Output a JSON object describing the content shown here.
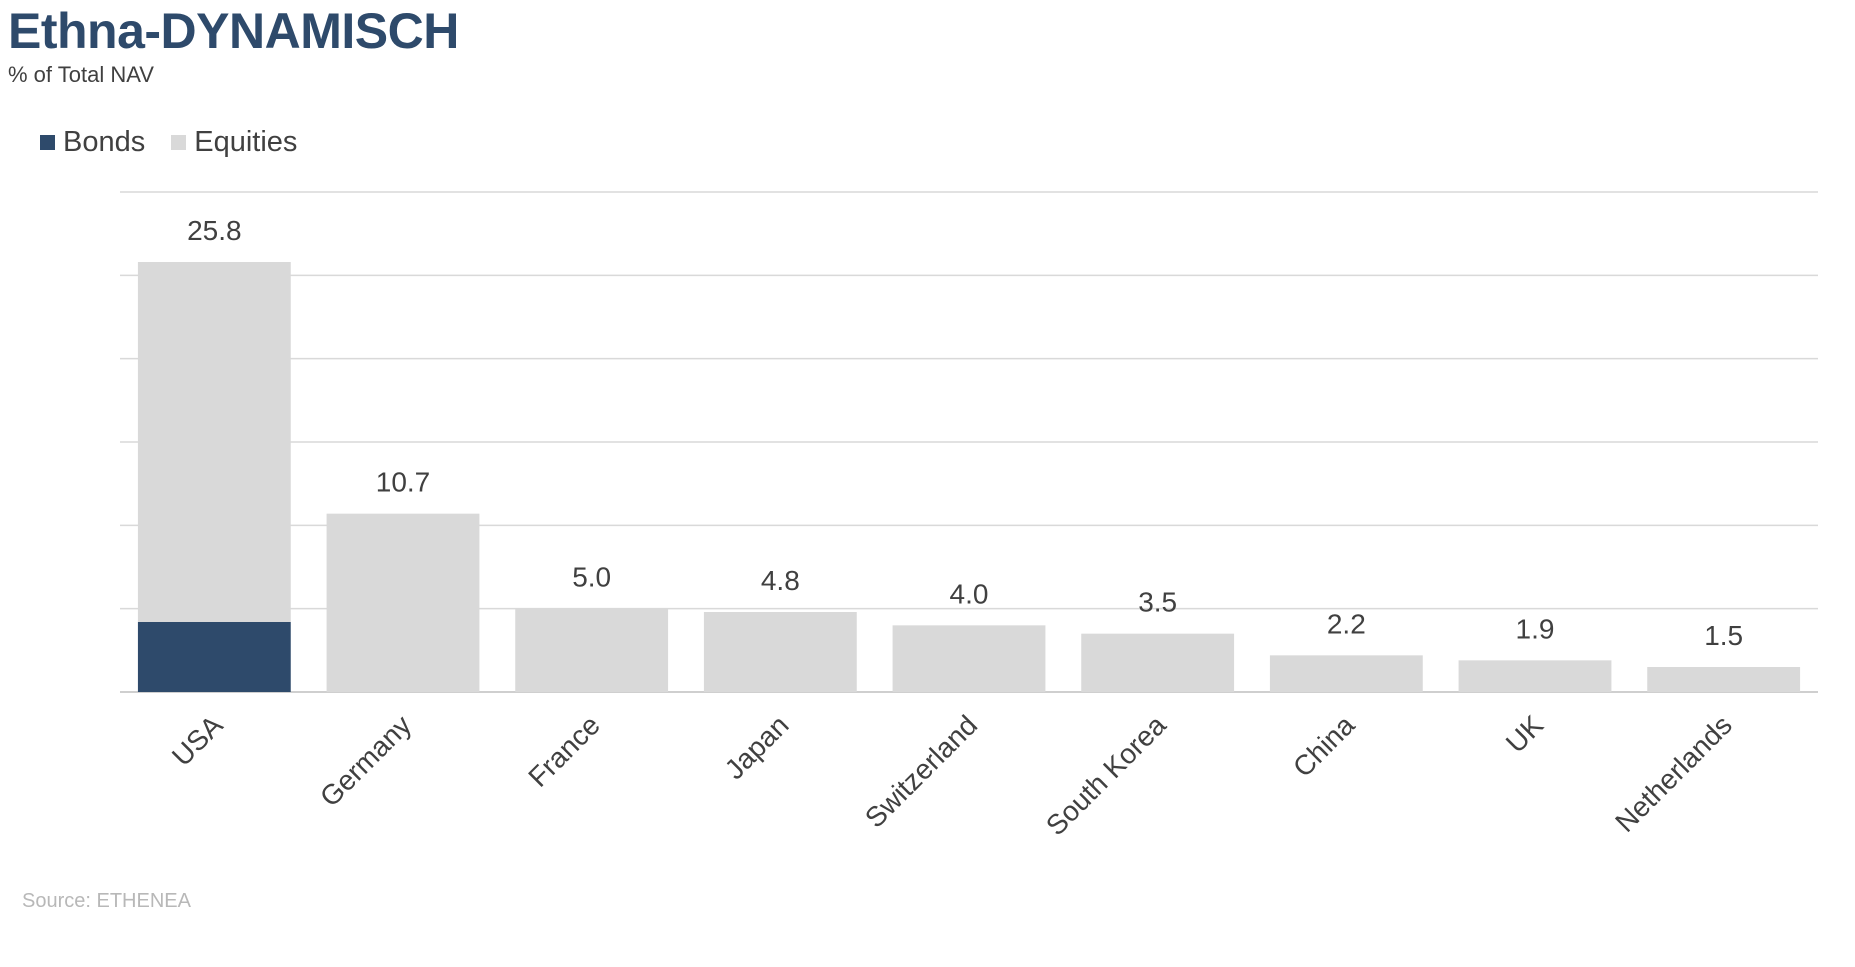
{
  "header": {
    "title": "Ethna-DYNAMISCH",
    "subtitle": "% of Total NAV"
  },
  "legend": [
    {
      "label": "Bonds",
      "color": "#2e4a6b"
    },
    {
      "label": "Equities",
      "color": "#d9d9d9"
    }
  ],
  "footer": {
    "source": "Source: ETHENEA"
  },
  "chart_data": {
    "type": "bar",
    "stacked": true,
    "title": "Ethna-DYNAMISCH",
    "subtitle": "% of Total NAV",
    "categories": [
      "USA",
      "Germany",
      "France",
      "Japan",
      "Switzerland",
      "South Korea",
      "China",
      "UK",
      "Netherlands"
    ],
    "series": [
      {
        "name": "Bonds",
        "color": "#2e4a6b",
        "values": [
          4.2,
          0,
          0,
          0,
          0,
          0,
          0,
          0,
          0
        ]
      },
      {
        "name": "Equities",
        "color": "#d9d9d9",
        "values": [
          21.6,
          10.7,
          5.0,
          4.8,
          4.0,
          3.5,
          2.2,
          1.9,
          1.5
        ]
      }
    ],
    "totals": [
      "25.8",
      "10.7",
      "5.0",
      "4.8",
      "4.0",
      "3.5",
      "2.2",
      "1.9",
      "1.5"
    ],
    "ylim": [
      0,
      30
    ],
    "ytick_step": 5,
    "y_tick_labels_visible": false,
    "grid": true,
    "legend_position": "top-left",
    "xlabel": "",
    "ylabel": ""
  }
}
